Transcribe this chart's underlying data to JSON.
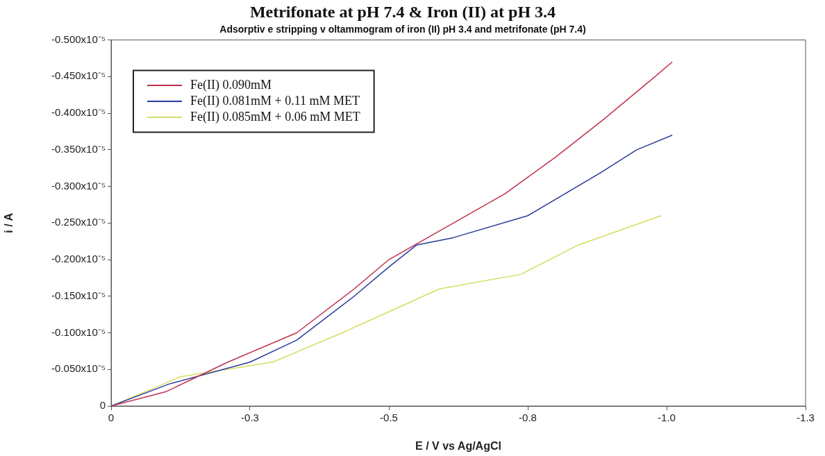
{
  "chart_data": {
    "type": "line",
    "title": "Metrifonate at pH 7.4 & Iron (II) at pH 3.4",
    "subtitle": "Adsorptiv e stripping v oltammogram of iron (II) pH 3.4 and metrifonate (pH 7.4)",
    "xlabel": "E / V vs Ag/AgCl",
    "ylabel": "i / A",
    "xlim": [
      0,
      -1.25
    ],
    "xticks": [
      0,
      {
        "value": -0.25,
        "label": "-0.3"
      },
      -0.5,
      {
        "value": -0.75,
        "label": "-0.8"
      },
      {
        "value": -1.0,
        "label": "-1.0"
      },
      {
        "value": -1.25,
        "label": "-1.3"
      }
    ],
    "ylim": [
      0,
      -5e-06
    ],
    "yticks": [
      0,
      {
        "value": -5e-07,
        "label": "-0.050x10⁻⁵"
      },
      {
        "value": -1e-06,
        "label": "-0.100x10⁻⁵"
      },
      {
        "value": -1.5e-06,
        "label": "-0.150x10⁻⁵"
      },
      {
        "value": -2e-06,
        "label": "-0.200x10⁻⁵"
      },
      {
        "value": -2.5e-06,
        "label": "-0.250x10⁻⁵"
      },
      {
        "value": -3e-06,
        "label": "-0.300x10⁻⁵"
      },
      {
        "value": -3.5e-06,
        "label": "-0.350x10⁻⁵"
      },
      {
        "value": -4e-06,
        "label": "-0.400x10⁻⁵"
      },
      {
        "value": -4.5e-06,
        "label": "-0.450x10⁻⁵"
      },
      {
        "value": -5e-06,
        "label": "-0.500x10⁻⁵"
      }
    ],
    "grid": false,
    "legend": "top left",
    "marker": "none",
    "line_style": "solid",
    "series": [
      {
        "name": "Fe(II) 0.090mM",
        "color": "#c0304a",
        "x": [
          0,
          -0.1,
          -0.21,
          -0.334,
          -0.4375,
          -0.5,
          -0.616,
          -0.709,
          -0.8,
          -0.884,
          -0.979,
          -1.01
        ],
        "values": [
          0,
          -2e-07,
          -6e-07,
          -1e-06,
          -1.6e-06,
          -2e-06,
          -2.5e-06,
          -2.9e-06,
          -3.4e-06,
          -3.9e-06,
          -4.5e-06,
          -4.7e-06
        ]
      },
      {
        "name": "Fe(II) 0.081mM + 0.11 mM MET",
        "color": "#2a3a9a",
        "x": [
          0,
          -0.104,
          -0.25,
          -0.334,
          -0.4375,
          -0.5,
          -0.55,
          -0.616,
          -0.75,
          -0.884,
          -0.946,
          -1.01
        ],
        "values": [
          0,
          -3e-07,
          -6e-07,
          -9e-07,
          -1.5e-06,
          -1.9e-06,
          -2.2e-06,
          -2.3e-06,
          -2.6e-06,
          -3.2e-06,
          -3.5e-06,
          -3.7e-06
        ]
      },
      {
        "name": "Fe(II) 0.085mM + 0.06 mM MET",
        "color": "#d6dc60",
        "x": [
          0,
          -0.125,
          -0.291,
          -0.416,
          -0.591,
          -0.738,
          -0.841,
          -0.99
        ],
        "values": [
          0,
          -4e-07,
          -6e-07,
          -1e-06,
          -1.6e-06,
          -1.8e-06,
          -2.2e-06,
          -2.6e-06
        ]
      }
    ]
  }
}
